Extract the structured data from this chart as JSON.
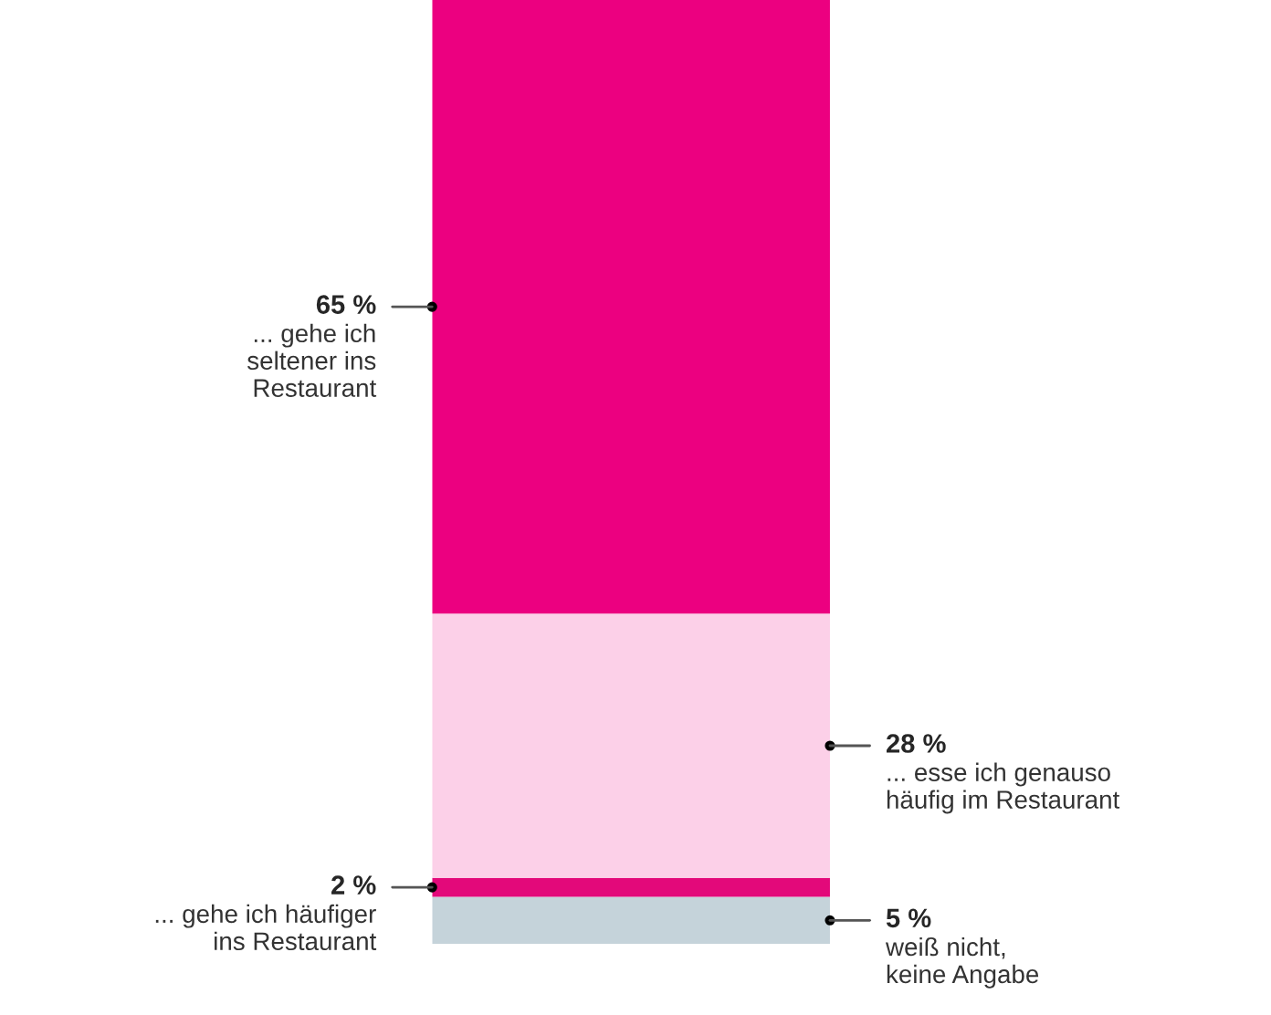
{
  "chart_data": {
    "type": "bar",
    "stacked": true,
    "categories": [
      null
    ],
    "legend": false,
    "series": [
      {
        "name": "weiß nicht,\nkeine Angabe",
        "color": "#c5d3da",
        "values": [
          5
        ],
        "value_labels": [
          "5 %"
        ]
      },
      {
        "name": "... gehe ich häufiger\nins Restaurant",
        "color": "#e3097a",
        "values": [
          2
        ],
        "value_labels": [
          "2 %"
        ]
      },
      {
        "name": "... esse ich genauso\nhäufig im Restaurant",
        "color": "#fcd0e8",
        "values": [
          28
        ],
        "value_labels": [
          "28 %"
        ]
      },
      {
        "name": "... gehe ich\nseltener ins\nRestaurant",
        "color": "#ec0080",
        "values": [
          65
        ],
        "value_labels": [
          "65 %"
        ]
      }
    ]
  }
}
